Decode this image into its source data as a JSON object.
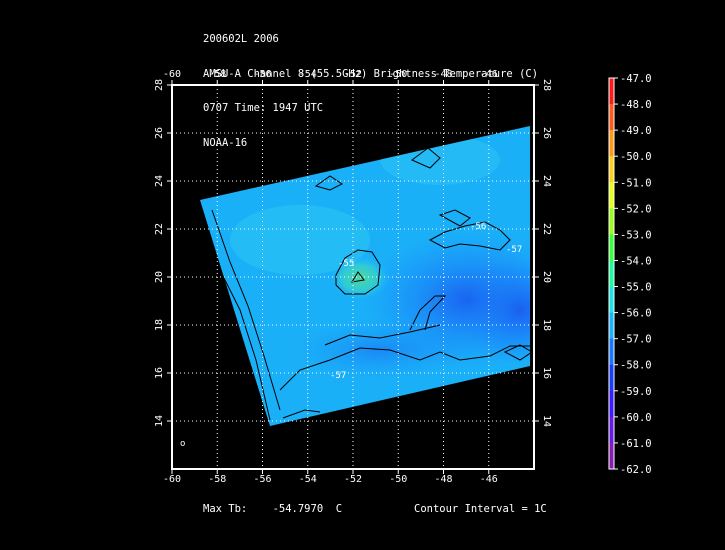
{
  "header": {
    "line1": "200602L 2006",
    "line2": "AMSU-A Channel 8 (55.5GHz) Brightness Temperature (C)",
    "line3": "0707 Time: 1947 UTC",
    "line4": "NOAA-16"
  },
  "map": {
    "lon_range": [
      -60,
      -44
    ],
    "lat_range": [
      12,
      28
    ],
    "lon_ticks": [
      "-60",
      "-58",
      "-56",
      "-54",
      "-52",
      "-50",
      "-48",
      "-46"
    ],
    "lat_ticks": [
      "14",
      "16",
      "18",
      "20",
      "22",
      "24",
      "26",
      "28"
    ],
    "contour_labels": [
      "-55",
      "-56",
      "-57",
      "-57"
    ]
  },
  "colorbar": {
    "labels": [
      "-47.0",
      "-48.0",
      "-49.0",
      "-50.0",
      "-51.0",
      "-52.0",
      "-53.0",
      "-54.0",
      "-55.0",
      "-56.0",
      "-57.0",
      "-58.0",
      "-59.0",
      "-60.0",
      "-61.0",
      "-62.0"
    ],
    "colors": [
      "#ff1a1a",
      "#ff5a1a",
      "#ff9a1a",
      "#ffd21a",
      "#e6ff1a",
      "#9aff1a",
      "#3cff3c",
      "#1aff9a",
      "#1ae6e6",
      "#1ab4ff",
      "#1a78ff",
      "#1a3cff",
      "#3c1aff",
      "#6a1ae6",
      "#8a1ab4",
      "#5a1a8a"
    ]
  },
  "footer": {
    "max_label": "Max Tb:",
    "max_value": "-54.7970",
    "max_unit": "C",
    "contour_interval": "Contour Interval = 1C"
  }
}
